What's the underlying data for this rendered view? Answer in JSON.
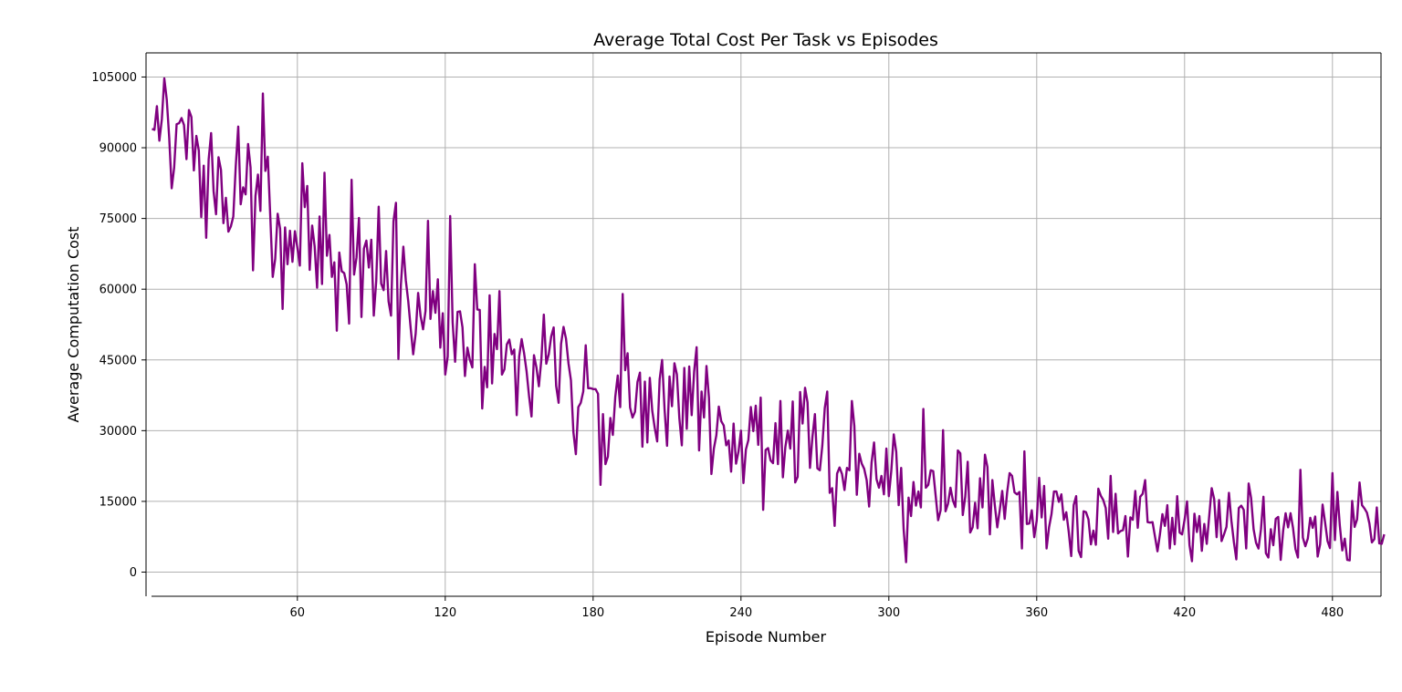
{
  "chart_data": {
    "type": "line",
    "title": "Average Total Cost Per Task vs Episodes",
    "xlabel": "Episode Number",
    "ylabel": "Average Computation Cost",
    "xlim": [
      1,
      500
    ],
    "ylim": [
      -5000,
      109000
    ],
    "x_ticks": [
      60,
      120,
      180,
      240,
      300,
      360,
      420,
      480
    ],
    "y_ticks": [
      0,
      15000,
      30000,
      45000,
      60000,
      75000,
      90000,
      105000
    ],
    "grid": true,
    "line_color": "#800080",
    "series": [
      {
        "x_start": 1,
        "x_step": 1,
        "values": [
          94000,
          93800,
          98800,
          91500,
          96000,
          104700,
          100200,
          92100,
          81400,
          85800,
          95000,
          95200,
          96300,
          94800,
          87600,
          98000,
          96500,
          85200,
          92500,
          89400,
          75300,
          86200,
          70900,
          87500,
          93100,
          80800,
          75900,
          88000,
          85300,
          74000,
          79400,
          72200,
          73300,
          75400,
          86100,
          94500,
          78000,
          81600,
          80100,
          90800,
          85800,
          64000,
          79800,
          84300,
          76600,
          101500,
          85100,
          88100,
          75500,
          62600,
          66400,
          76000,
          72800,
          55800,
          73100,
          65300,
          72400,
          65800,
          72300,
          68800,
          65000,
          86700,
          77400,
          81900,
          64100,
          73500,
          69100,
          60300,
          75400,
          61100,
          84700,
          67100,
          71500,
          62600,
          65700,
          51200,
          67800,
          63800,
          63400,
          61000,
          52700,
          83200,
          63100,
          66700,
          75100,
          54100,
          68600,
          70300,
          64600,
          70500,
          54400,
          61800,
          77500,
          61200,
          59800,
          68100,
          57400,
          54400,
          74400,
          78300,
          45200,
          60900,
          69000,
          61900,
          57400,
          51600,
          46200,
          50600,
          59200,
          54300,
          51500,
          55400,
          74500,
          53700,
          59600,
          55000,
          62100,
          47600,
          54900,
          41900,
          45700,
          75500,
          53000,
          44600,
          55200,
          55300,
          51900,
          41600,
          47600,
          45000,
          43400,
          65300,
          55700,
          55600,
          34700,
          43500,
          39200,
          58700,
          40000,
          50500,
          47300,
          59600,
          41900,
          43000,
          48300,
          49300,
          46200,
          47200,
          33300,
          45700,
          49400,
          46400,
          42600,
          37400,
          33000,
          46000,
          43400,
          39400,
          45100,
          54600,
          44200,
          46200,
          50000,
          51900,
          39500,
          35900,
          48400,
          52000,
          49500,
          44300,
          40700,
          29700,
          25000,
          35000,
          35900,
          38300,
          48100,
          39000,
          39000,
          38800,
          38800,
          37800,
          18500,
          33500,
          22900,
          24500,
          32700,
          29100,
          37200,
          41700,
          35000,
          59000,
          42800,
          46400,
          34900,
          32800,
          34000,
          40300,
          42300,
          26600,
          40400,
          27500,
          41200,
          34200,
          30600,
          27700,
          40900,
          45000,
          34500,
          26800,
          41500,
          35200,
          44300,
          41900,
          32600,
          26900,
          43300,
          30400,
          43600,
          33300,
          42600,
          47700,
          25800,
          38300,
          32800,
          43700,
          37000,
          20800,
          26200,
          29000,
          35100,
          32000,
          31100,
          26900,
          27900,
          21300,
          31500,
          23000,
          25600,
          30000,
          18900,
          26000,
          28000,
          35000,
          29900,
          35300,
          27000,
          37000,
          13200,
          25900,
          26300,
          23700,
          23100,
          31600,
          22900,
          36300,
          20100,
          26500,
          30000,
          26200,
          36200,
          19000,
          20200,
          38200,
          31500,
          39100,
          36000,
          22100,
          28700,
          33500,
          22000,
          21600,
          26800,
          34800,
          38300,
          16800,
          17800,
          9800,
          20900,
          22200,
          20800,
          17400,
          22100,
          21600,
          36300,
          31000,
          16400,
          25100,
          23000,
          21900,
          19500,
          13900,
          23300,
          27500,
          19700,
          17900,
          20400,
          16500,
          26200,
          16100,
          21500,
          29200,
          25500,
          14200,
          22100,
          9100,
          2100,
          15800,
          11900,
          19100,
          14100,
          17100,
          13700,
          34600,
          17900,
          18500,
          21600,
          21400,
          16200,
          11000,
          13100,
          30100,
          12900,
          14500,
          17900,
          15200,
          13800,
          25800,
          25200,
          12100,
          16000,
          23400,
          8400,
          9500,
          14700,
          9300,
          19900,
          13700,
          24900,
          22300,
          8000,
          19500,
          14200,
          9500,
          13100,
          17200,
          11300,
          16900,
          21000,
          20400,
          16900,
          16500,
          17000,
          5000,
          25600,
          10200,
          10300,
          13100,
          7400,
          10900,
          20000,
          11600,
          18300,
          5000,
          9500,
          12300,
          17100,
          17100,
          14900,
          16500,
          11100,
          12700,
          8500,
          3400,
          14200,
          16100,
          4500,
          3200,
          12900,
          12700,
          11200,
          5900,
          8800,
          5800,
          17700,
          16200,
          15300,
          13600,
          7100,
          20400,
          8500,
          16600,
          8200,
          8700,
          8900,
          11900,
          3300,
          11600,
          11100,
          17200,
          9400,
          16000,
          16600,
          19500,
          10600,
          10500,
          10600,
          7500,
          4400,
          8000,
          12300,
          9800,
          14200,
          5000,
          11500,
          5900,
          16100,
          8400,
          8000,
          11100,
          15000,
          5700,
          2300,
          12400,
          8500,
          11900,
          4500,
          10200,
          6000,
          11900,
          17800,
          15500,
          7400,
          15300,
          6600,
          8000,
          9600,
          16800,
          10900,
          6400,
          2700,
          13600,
          14100,
          13200,
          5000,
          18800,
          15700,
          9100,
          6200,
          5000,
          9100,
          16000,
          4000,
          3100,
          9100,
          5700,
          11300,
          11700,
          2600,
          8800,
          12500,
          9500,
          12500,
          9400,
          4900,
          3100,
          21700,
          7300,
          5500,
          7100,
          11500,
          9400,
          11800,
          3300,
          5900,
          14300,
          10600,
          6600,
          5100,
          21000,
          6800,
          17000,
          9800,
          4600,
          7100,
          2600,
          2500,
          15100,
          9600,
          11200,
          19000,
          14200,
          13500,
          12600,
          10300,
          6300,
          7000,
          13700,
          6100,
          6000,
          8000
        ]
      }
    ]
  }
}
